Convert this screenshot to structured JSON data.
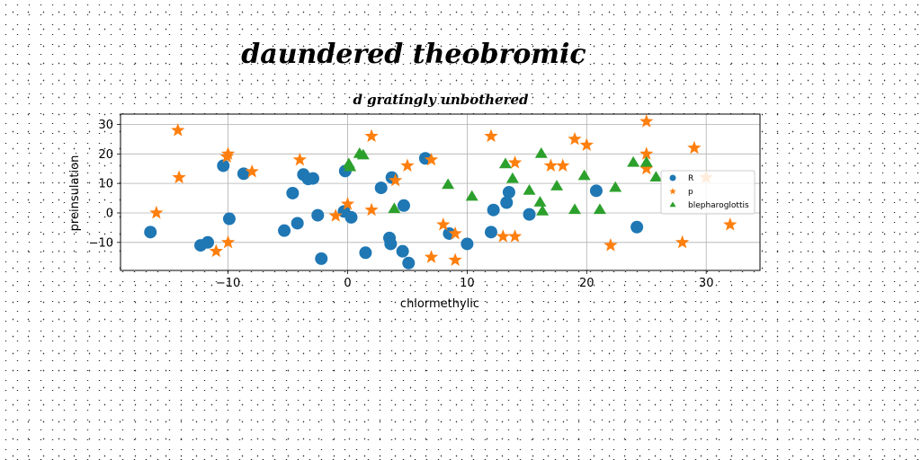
{
  "chart_data": {
    "type": "scatter",
    "title": "daundered theobromic",
    "subtitle": "d gratingly unbothered",
    "xlabel": "chlormethylic",
    "ylabel": "preinsulation",
    "xlim": [
      -19,
      34.5
    ],
    "ylim": [
      -19.5,
      33.5
    ],
    "xticks": [
      -10,
      0,
      10,
      20,
      30
    ],
    "yticks": [
      -10,
      0,
      10,
      20,
      30
    ],
    "xtick_labels": [
      "−10",
      "0",
      "10",
      "20",
      "30"
    ],
    "ytick_labels": [
      "−10",
      "0",
      "10",
      "20",
      "30"
    ],
    "grid": true,
    "legend_position": "right",
    "series": [
      {
        "name": "R",
        "marker": "circle",
        "color": "#1f77b4",
        "points": [
          [
            -16.5,
            -6.5
          ],
          [
            -12.3,
            -11
          ],
          [
            -11.7,
            -10
          ],
          [
            -10.4,
            16
          ],
          [
            -9.9,
            -2
          ],
          [
            -8.7,
            13.3
          ],
          [
            -5.3,
            -6
          ],
          [
            -4.6,
            6.7
          ],
          [
            -4.2,
            -3.5
          ],
          [
            -3.7,
            13
          ],
          [
            -3.3,
            11.5
          ],
          [
            -2.9,
            11.7
          ],
          [
            -2.5,
            -0.8
          ],
          [
            -2.2,
            -15.5
          ],
          [
            -0.3,
            0.5
          ],
          [
            -0.2,
            14.2
          ],
          [
            0.3,
            -1.5
          ],
          [
            1.5,
            -13.5
          ],
          [
            2.8,
            8.5
          ],
          [
            3.5,
            -8.5
          ],
          [
            3.6,
            -10.5
          ],
          [
            3.7,
            12
          ],
          [
            4.6,
            -13
          ],
          [
            4.7,
            2.5
          ],
          [
            5.1,
            -17
          ],
          [
            6.5,
            18.5
          ],
          [
            8.5,
            -7
          ],
          [
            10,
            -10.5
          ],
          [
            12,
            -6.5
          ],
          [
            12.2,
            1
          ],
          [
            13.3,
            3.5
          ],
          [
            13.5,
            7
          ],
          [
            15.2,
            -0.5
          ],
          [
            20.8,
            7.5
          ],
          [
            24.2,
            -4.8
          ]
        ]
      },
      {
        "name": "p",
        "marker": "star",
        "color": "#ff7f0e",
        "points": [
          [
            -16,
            0
          ],
          [
            -14.2,
            28
          ],
          [
            -14.1,
            12
          ],
          [
            -11,
            -13
          ],
          [
            -10.1,
            19
          ],
          [
            -10,
            20
          ],
          [
            -10,
            -10
          ],
          [
            -8,
            14
          ],
          [
            -4,
            18
          ],
          [
            -1,
            -1
          ],
          [
            0,
            3
          ],
          [
            2,
            1
          ],
          [
            2,
            26
          ],
          [
            4,
            11
          ],
          [
            5,
            16
          ],
          [
            7,
            18
          ],
          [
            7,
            -15
          ],
          [
            8,
            -4
          ],
          [
            9,
            -7
          ],
          [
            9,
            -16
          ],
          [
            12,
            26
          ],
          [
            13,
            -8
          ],
          [
            14,
            17
          ],
          [
            14,
            -8
          ],
          [
            17,
            16
          ],
          [
            18,
            16
          ],
          [
            19,
            25
          ],
          [
            20,
            23
          ],
          [
            22,
            -11
          ],
          [
            25,
            31
          ],
          [
            25,
            20
          ],
          [
            25,
            15
          ],
          [
            28,
            -10
          ],
          [
            29,
            22
          ],
          [
            30,
            12
          ],
          [
            32,
            -4
          ]
        ]
      },
      {
        "name": "blepharoglottis",
        "marker": "triangle",
        "color": "#2ca02c",
        "points": [
          [
            0.1,
            16.5
          ],
          [
            0.2,
            15.5
          ],
          [
            1,
            20
          ],
          [
            1.3,
            19.5
          ],
          [
            3.9,
            1.3
          ],
          [
            8.4,
            9.5
          ],
          [
            10.4,
            5.5
          ],
          [
            13.2,
            16.5
          ],
          [
            13.8,
            11.5
          ],
          [
            15.2,
            7.5
          ],
          [
            16.1,
            3.5
          ],
          [
            16.2,
            20
          ],
          [
            16.3,
            0.5
          ],
          [
            17.5,
            9
          ],
          [
            19,
            1
          ],
          [
            19.8,
            12.5
          ],
          [
            21.1,
            1
          ],
          [
            22.4,
            8.5
          ],
          [
            23.9,
            17
          ],
          [
            25,
            17
          ],
          [
            25.8,
            12
          ]
        ]
      }
    ]
  }
}
